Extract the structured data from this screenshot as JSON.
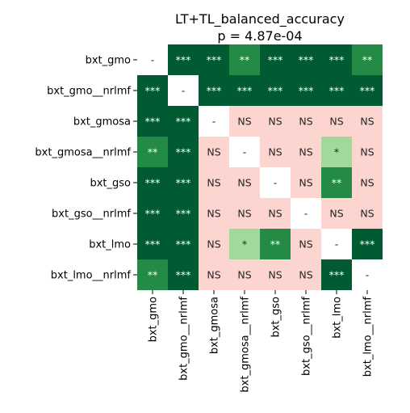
{
  "chart_data": {
    "type": "heatmap",
    "title": "LT+TL_balanced_accuracy",
    "subtitle": "p = 4.87e-04",
    "row_labels": [
      "bxt_gmo",
      "bxt_gmo__nrlmf",
      "bxt_gmosa",
      "bxt_gmosa__nrlmf",
      "bxt_gso",
      "bxt_gso__nrlmf",
      "bxt_lmo",
      "bxt_lmo__nrlmf"
    ],
    "col_labels": [
      "bxt_gmo",
      "bxt_gmo__nrlmf",
      "bxt_gmosa",
      "bxt_gmosa__nrlmf",
      "bxt_gso",
      "bxt_gso__nrlmf",
      "bxt_lmo",
      "bxt_lmo__nrlmf"
    ],
    "cells": [
      [
        "-",
        "***",
        "***",
        "**",
        "***",
        "***",
        "***",
        "**"
      ],
      [
        "***",
        "-",
        "***",
        "***",
        "***",
        "***",
        "***",
        "***"
      ],
      [
        "***",
        "***",
        "-",
        "NS",
        "NS",
        "NS",
        "NS",
        "NS"
      ],
      [
        "**",
        "***",
        "NS",
        "-",
        "NS",
        "NS",
        "*",
        "NS"
      ],
      [
        "***",
        "***",
        "NS",
        "NS",
        "-",
        "NS",
        "**",
        "NS"
      ],
      [
        "***",
        "***",
        "NS",
        "NS",
        "NS",
        "-",
        "NS",
        "NS"
      ],
      [
        "***",
        "***",
        "NS",
        "*",
        "**",
        "NS",
        "-",
        "***"
      ],
      [
        "**",
        "***",
        "NS",
        "NS",
        "NS",
        "NS",
        "***",
        "-"
      ]
    ],
    "colors": {
      "***": "#005a32",
      "**": "#238b45",
      "*": "#a1d99b",
      "NS": "#fcd5d0",
      "-": "#ffffff"
    },
    "text_colors": {
      "***": "#ffffff",
      "**": "#ffffff",
      "*": "#262626",
      "NS": "#262626",
      "-": "#262626"
    }
  }
}
